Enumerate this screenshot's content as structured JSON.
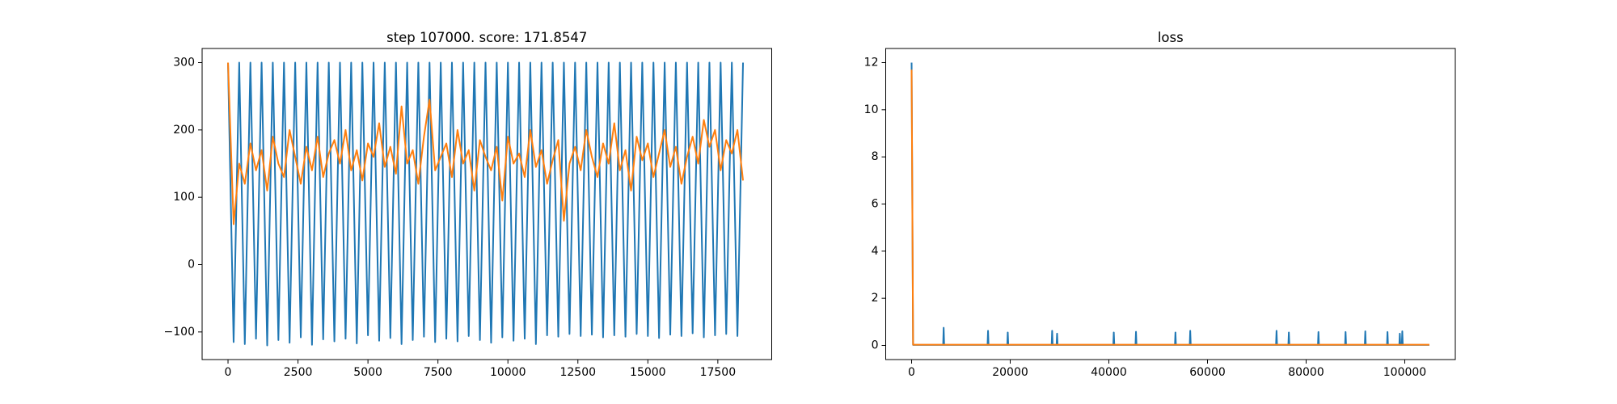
{
  "chart_data": [
    {
      "type": "line",
      "title": "step 107000. score: 171.8547",
      "x": [
        0,
        200,
        400,
        600,
        800,
        1000,
        1200,
        1400,
        1600,
        1800,
        2000,
        2200,
        2400,
        2600,
        2800,
        3000,
        3200,
        3400,
        3600,
        3800,
        4000,
        4200,
        4400,
        4600,
        4800,
        5000,
        5200,
        5400,
        5600,
        5800,
        6000,
        6200,
        6400,
        6600,
        6800,
        7000,
        7200,
        7400,
        7600,
        7800,
        8000,
        8200,
        8400,
        8600,
        8800,
        9000,
        9200,
        9400,
        9600,
        9800,
        10000,
        10200,
        10400,
        10600,
        10800,
        11000,
        11200,
        11400,
        11600,
        11800,
        12000,
        12200,
        12400,
        12600,
        12800,
        13000,
        13200,
        13400,
        13600,
        13800,
        14000,
        14200,
        14400,
        14600,
        14800,
        15000,
        15200,
        15400,
        15600,
        15800,
        16000,
        16200,
        16400,
        16600,
        16800,
        17000,
        17200,
        17400,
        17600,
        17800,
        18000,
        18200,
        18400
      ],
      "series": [
        {
          "color": "#1f77b4",
          "values": [
            300,
            -115,
            300,
            -118,
            300,
            -110,
            300,
            -120,
            300,
            -112,
            300,
            -116,
            300,
            -108,
            300,
            -119,
            300,
            -111,
            300,
            -114,
            300,
            -110,
            300,
            -117,
            300,
            -105,
            300,
            -113,
            300,
            -109,
            300,
            -118,
            300,
            -112,
            300,
            -107,
            300,
            -115,
            300,
            -110,
            300,
            -114,
            300,
            -106,
            300,
            -112,
            300,
            -116,
            300,
            -108,
            300,
            -113,
            300,
            -110,
            300,
            -118,
            300,
            -105,
            300,
            -107,
            300,
            -103,
            300,
            -106,
            300,
            -104,
            300,
            -108,
            300,
            -105,
            300,
            -107,
            300,
            -103,
            300,
            -106,
            300,
            -109,
            300,
            -104,
            300,
            -106,
            300,
            -102,
            300,
            -108,
            300,
            -105,
            300,
            -103,
            300,
            -106,
            300
          ]
        },
        {
          "color": "#ff7f0e",
          "values": [
            300,
            60,
            150,
            120,
            180,
            140,
            170,
            110,
            190,
            150,
            130,
            200,
            160,
            120,
            175,
            140,
            190,
            130,
            165,
            185,
            150,
            200,
            140,
            170,
            125,
            180,
            160,
            210,
            145,
            175,
            135,
            235,
            150,
            170,
            120,
            190,
            245,
            140,
            160,
            180,
            130,
            200,
            150,
            170,
            110,
            185,
            160,
            140,
            175,
            95,
            190,
            150,
            165,
            130,
            200,
            145,
            170,
            120,
            155,
            185,
            65,
            150,
            175,
            140,
            200,
            160,
            130,
            180,
            150,
            210,
            140,
            170,
            110,
            190,
            155,
            180,
            130,
            165,
            200,
            145,
            175,
            120,
            160,
            190,
            150,
            215,
            175,
            200,
            140,
            185,
            165,
            200,
            125
          ]
        }
      ],
      "xlim": [
        -925,
        19425
      ],
      "xticks": [
        0,
        2500,
        5000,
        7500,
        10000,
        12500,
        15000,
        17500
      ],
      "ylim": [
        -141,
        321
      ],
      "yticks": [
        {
          "value": -100,
          "label": "−100"
        },
        0,
        100,
        200,
        300
      ]
    },
    {
      "type": "line",
      "title": "loss",
      "series": [
        {
          "color": "#1f77b4",
          "x": [
            0,
            300,
            6400,
            6500,
            6600,
            15400,
            15500,
            15600,
            19400,
            19500,
            19600,
            28400,
            28500,
            28600,
            29400,
            29500,
            29600,
            40900,
            41000,
            41100,
            45400,
            45500,
            45600,
            53400,
            53500,
            53600,
            56400,
            56500,
            56600,
            73900,
            74000,
            74100,
            76400,
            76500,
            76600,
            82400,
            82500,
            82600,
            87900,
            88000,
            88100,
            91900,
            92000,
            92100,
            96400,
            96500,
            96600,
            98900,
            99000,
            99100,
            99400,
            99500,
            99600,
            105000
          ],
          "values": [
            12,
            0.02,
            0.02,
            0.75,
            0.02,
            0.02,
            0.62,
            0.02,
            0.02,
            0.55,
            0.02,
            0.02,
            0.62,
            0.02,
            0.02,
            0.5,
            0.02,
            0.02,
            0.55,
            0.02,
            0.02,
            0.58,
            0.02,
            0.02,
            0.55,
            0.02,
            0.02,
            0.62,
            0.02,
            0.02,
            0.62,
            0.02,
            0.02,
            0.55,
            0.02,
            0.02,
            0.57,
            0.02,
            0.02,
            0.57,
            0.02,
            0.02,
            0.6,
            0.02,
            0.02,
            0.57,
            0.02,
            0.02,
            0.5,
            0.02,
            0.02,
            0.6,
            0.02,
            0.02
          ]
        },
        {
          "color": "#ff7f0e",
          "x": [
            0,
            300,
            105000
          ],
          "values": [
            11.7,
            0.03,
            0.03
          ]
        }
      ],
      "xlim": [
        -5250,
        110250
      ],
      "xticks": [
        0,
        20000,
        40000,
        60000,
        80000,
        100000
      ],
      "ylim": [
        -0.6,
        12.6
      ],
      "yticks": [
        0,
        2,
        4,
        6,
        8,
        10,
        12
      ]
    }
  ]
}
